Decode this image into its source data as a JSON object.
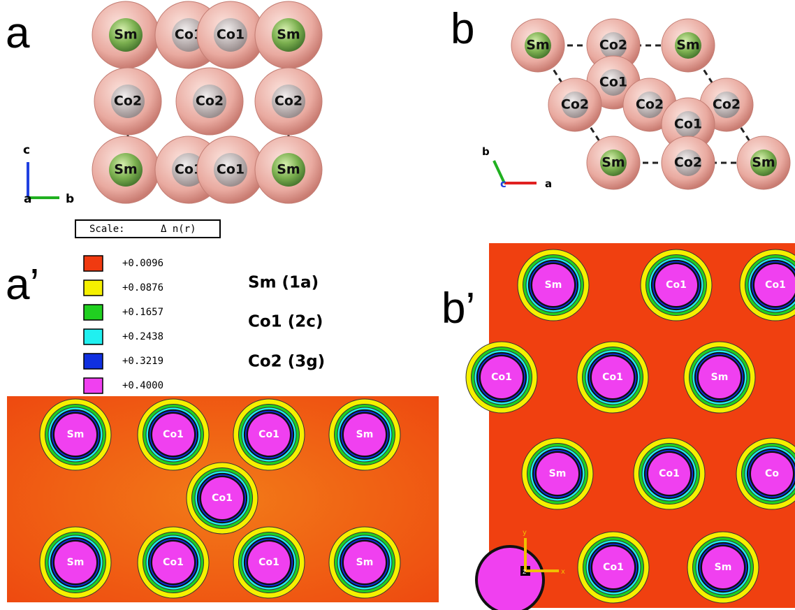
{
  "panels": {
    "a": {
      "label": "a",
      "atoms": [
        "Sm",
        "Co1",
        "Co1",
        "Sm",
        "Co2",
        "Co2",
        "Co2",
        "Sm",
        "Co1",
        "Co1",
        "Sm"
      ],
      "axes": [
        "c",
        "a",
        "b"
      ]
    },
    "b": {
      "label": "b",
      "atoms": [
        "Sm",
        "Co2",
        "Sm",
        "Co1",
        "Co2",
        "Co2",
        "Co2",
        "Co1",
        "Sm",
        "Co2",
        "Sm"
      ],
      "axes": [
        "b",
        "c",
        "a"
      ]
    },
    "a_prime": {
      "label": "a’",
      "atoms": [
        "Sm",
        "Co1",
        "Co1",
        "Sm",
        "Co1",
        "Sm",
        "Co1",
        "Co1",
        "Sm"
      ]
    },
    "b_prime": {
      "label": "b’",
      "atoms": [
        "Sm",
        "Co1",
        "Co1",
        "Co1",
        "Co1",
        "Sm",
        "Sm",
        "Co1",
        "Co",
        "Co1",
        "Sm"
      ],
      "axes": [
        "y",
        "z",
        "x"
      ]
    }
  },
  "scale": {
    "title": "Scale:",
    "quantity": "Δ n(r)",
    "levels": [
      {
        "color": "#f03a10",
        "label": "+0.0096"
      },
      {
        "color": "#f5f000",
        "label": "+0.0876"
      },
      {
        "color": "#20d020",
        "label": "+0.1657"
      },
      {
        "color": "#20f0f0",
        "label": "+0.2438"
      },
      {
        "color": "#1030e0",
        "label": "+0.3219"
      },
      {
        "color": "#f040f0",
        "label": "+0.4000"
      }
    ]
  },
  "sites": [
    "Sm (1a)",
    "Co1 (2c)",
    "Co2 (3g)"
  ]
}
